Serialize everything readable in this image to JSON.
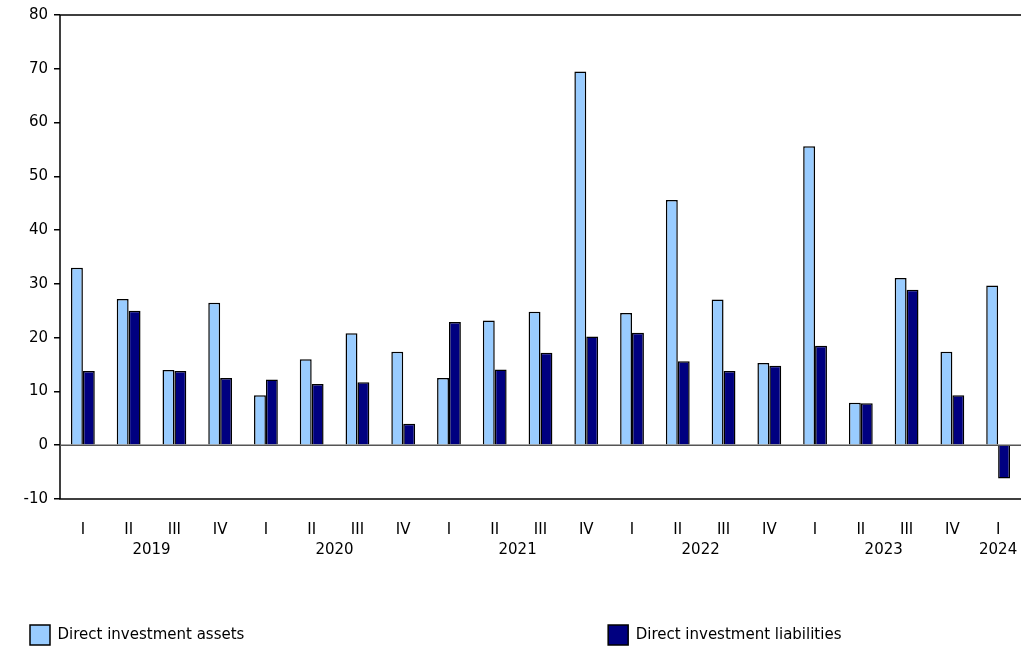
{
  "chart_data": {
    "type": "bar",
    "categories": [
      "I",
      "II",
      "III",
      "IV",
      "I",
      "II",
      "III",
      "IV",
      "I",
      "II",
      "III",
      "IV",
      "I",
      "II",
      "III",
      "IV",
      "I",
      "II",
      "III",
      "IV",
      "I"
    ],
    "annotations": [
      "2019",
      "2020",
      "2021",
      "2022",
      "2023",
      "2024"
    ],
    "series": [
      {
        "name": "Direct investment assets",
        "color": "#99ccff",
        "values": [
          33.0,
          27.2,
          14.0,
          26.5,
          9.3,
          16.0,
          20.8,
          17.4,
          12.5,
          23.2,
          24.8,
          69.5,
          24.6,
          45.6,
          27.1,
          15.3,
          55.6,
          7.9,
          31.1,
          17.4,
          29.7
        ]
      },
      {
        "name": "Direct investment liabilities",
        "color": "#000080",
        "values": [
          13.8,
          25.0,
          13.8,
          12.5,
          12.2,
          11.4,
          11.7,
          4.0,
          22.9,
          14.1,
          17.2,
          20.2,
          20.9,
          15.6,
          13.8,
          14.8,
          18.5,
          7.8,
          28.9,
          9.3,
          -6.2
        ]
      }
    ],
    "ylim": [
      -10,
      80
    ],
    "yticks": [
      -10,
      0,
      10,
      20,
      30,
      40,
      50,
      60,
      70,
      80
    ],
    "legend": "bottom"
  }
}
